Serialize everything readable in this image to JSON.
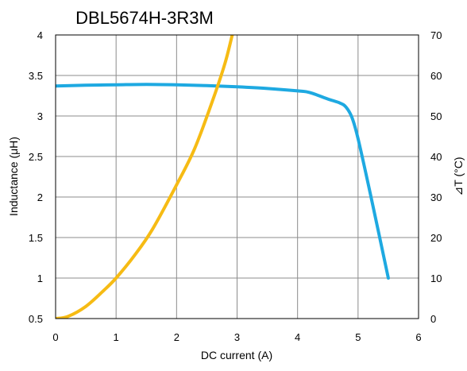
{
  "chart_data": {
    "type": "line",
    "title": "DBL5674H-3R3M",
    "xlabel": "DC current (A)",
    "ylabel": "Inductance (μH)",
    "y2label": "⊿T (°C)",
    "xlim": [
      0,
      6
    ],
    "ylim": [
      0.5,
      4
    ],
    "y2lim": [
      0,
      70
    ],
    "grid": true,
    "x_ticks": [
      "0",
      "1",
      "2",
      "3",
      "4",
      "5",
      "6"
    ],
    "y_ticks": [
      "0.5",
      "1",
      "1.5",
      "2",
      "2.5",
      "3",
      "3.5",
      "4"
    ],
    "y2_ticks": [
      "0",
      "10",
      "20",
      "30",
      "40",
      "50",
      "60",
      "70"
    ],
    "series": [
      {
        "axis": "left",
        "color": "#1ea9e1",
        "x": [
          0,
          0.5,
          1.0,
          1.5,
          2.0,
          2.5,
          3.0,
          3.5,
          4.0,
          4.2,
          4.5,
          4.7,
          4.8,
          4.9,
          5.0,
          5.2,
          5.5
        ],
        "y": [
          3.37,
          3.38,
          3.385,
          3.39,
          3.385,
          3.375,
          3.36,
          3.34,
          3.31,
          3.29,
          3.21,
          3.16,
          3.11,
          2.98,
          2.72,
          2.05,
          1.0
        ]
      },
      {
        "axis": "right",
        "color": "#f6bb14",
        "x": [
          0,
          0.2,
          0.5,
          0.8,
          1.0,
          1.3,
          1.6,
          2.0,
          2.3,
          2.6,
          2.8,
          2.92
        ],
        "y": [
          0,
          0.5,
          3,
          7,
          10,
          15.5,
          22,
          33,
          42,
          54,
          63,
          70
        ]
      }
    ]
  }
}
